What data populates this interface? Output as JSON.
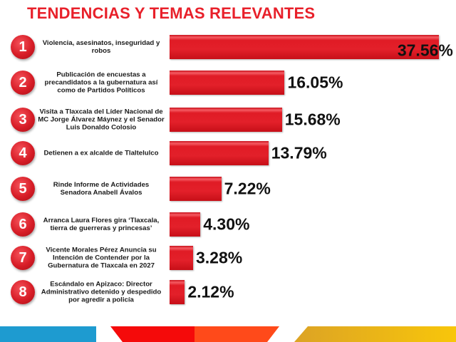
{
  "chart_data": {
    "type": "bar",
    "orientation": "horizontal",
    "title": "TENDENCIAS Y TEMAS RELEVANTES",
    "xlabel": "",
    "ylabel": "",
    "xlim": [
      0,
      40
    ],
    "grid": false,
    "categories": [
      {
        "rank": "1",
        "label": "Violencia, asesinatos, inseguridad y robos",
        "value_label": "37.56%"
      },
      {
        "rank": "2",
        "label": "Publicación de encuestas a precandidatos a la gubernatura así como de Partidos Políticos",
        "value_label": "16.05%"
      },
      {
        "rank": "3",
        "label": "Visita a Tlaxcala del Líder Nacional de MC Jorge Álvarez Máynez y el Senador Luis Donaldo Colosio",
        "value_label": "15.68%"
      },
      {
        "rank": "4",
        "label": "Detienen a ex alcalde de Tlaltelulco",
        "value_label": "13.79%"
      },
      {
        "rank": "5",
        "label": "Rinde Informe de Actividades Senadora Anabell Ávalos",
        "value_label": "7.22%"
      },
      {
        "rank": "6",
        "label": "Arranca Laura Flores gira ‘Tlaxcala, tierra de guerreras y princesas’",
        "value_label": "4.30%"
      },
      {
        "rank": "7",
        "label": "Vicente Morales Pérez Anuncia su Intención de Contender por la Gubernatura de Tlaxcala en 2027",
        "value_label": "3.28%"
      },
      {
        "rank": "8",
        "label": "Escándalo en Apizaco: Director Administrativo detenido y despedido por agredir a policía",
        "value_label": "2.12%"
      }
    ],
    "values": [
      37.56,
      16.05,
      15.68,
      13.79,
      7.22,
      4.3,
      3.28,
      2.12
    ]
  },
  "colors": {
    "bar": "#e3202a",
    "title": "#e8202a",
    "blue": "#1e9bd0",
    "red": "#f50a0a",
    "orange": "#ff4a1a",
    "yellow": "#f5c010"
  }
}
